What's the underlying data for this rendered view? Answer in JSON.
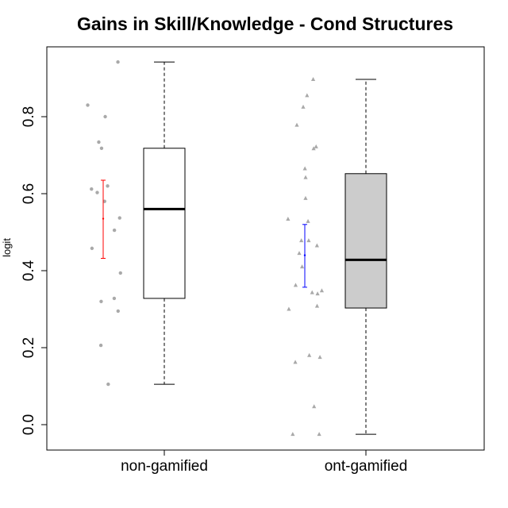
{
  "chart_data": {
    "type": "boxplot",
    "title": "Gains in Skill/Knowledge - Cond Structures",
    "xlabel": "",
    "ylabel": "logit",
    "ylim": [
      -0.06,
      0.98
    ],
    "yticks": [
      "0.0",
      "0.2",
      "0.4",
      "0.6",
      "0.8"
    ],
    "grid": false,
    "categories": [
      "non-gamified",
      "ont-gamified"
    ],
    "boxes": [
      {
        "category": "non-gamified",
        "whisker_low": 0.105,
        "q1": 0.328,
        "median": 0.56,
        "q3": 0.718,
        "whisker_high": 0.942,
        "fill": "#ffffff",
        "mean_error_bar": {
          "low": 0.432,
          "mean": 0.535,
          "high": 0.635,
          "color": "#ff0000"
        },
        "point_marker": "circle",
        "points": [
          0.942,
          0.83,
          0.8,
          0.734,
          0.718,
          0.62,
          0.612,
          0.603,
          0.58,
          0.537,
          0.505,
          0.458,
          0.394,
          0.328,
          0.32,
          0.295,
          0.206,
          0.105
        ]
      },
      {
        "category": "ont-gamified",
        "whisker_low": -0.025,
        "q1": 0.303,
        "median": 0.428,
        "q3": 0.652,
        "whisker_high": 0.897,
        "fill": "#cccccc",
        "mean_error_bar": {
          "low": 0.357,
          "mean": 0.44,
          "high": 0.52,
          "color": "#0000ff"
        },
        "point_marker": "triangle",
        "points": [
          0.897,
          0.855,
          0.825,
          0.778,
          0.722,
          0.717,
          0.665,
          0.642,
          0.588,
          0.534,
          0.528,
          0.478,
          0.478,
          0.465,
          0.445,
          0.41,
          0.362,
          0.348,
          0.343,
          0.34,
          0.308,
          0.3,
          0.18,
          0.175,
          0.162,
          0.047,
          -0.025,
          -0.025
        ]
      }
    ],
    "point_color": "#a9a9a9",
    "axis_color": "#000000"
  }
}
